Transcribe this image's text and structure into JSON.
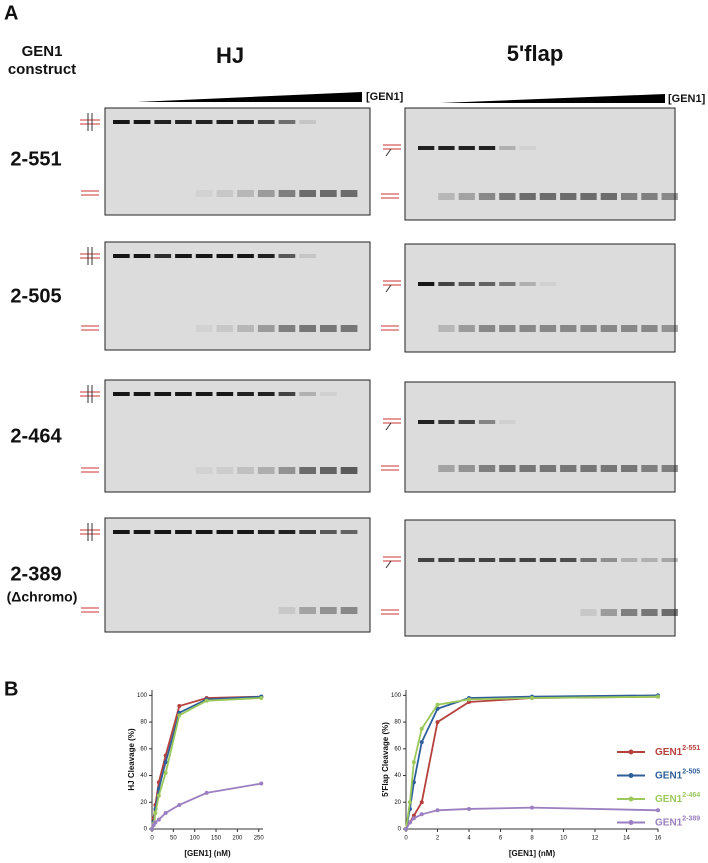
{
  "panel_a": {
    "label": "A",
    "construct_header": [
      "GEN1",
      "construct"
    ],
    "gel_titles": [
      "HJ",
      "5'flap"
    ],
    "titration_label": "[GEN1]",
    "rows": [
      {
        "label": "2-551"
      },
      {
        "label": "2-505"
      },
      {
        "label": "2-464"
      },
      {
        "label": "2-389",
        "sublabel": "(Δchromo)"
      }
    ]
  },
  "panel_b": {
    "label": "B"
  },
  "chart_data": [
    {
      "type": "line",
      "y_label": "HJ Cleavage (%)",
      "x_label": "[GEN1] (nM)",
      "x": [
        0,
        4,
        8,
        16,
        32,
        64,
        128,
        256
      ],
      "xlim": [
        0,
        260
      ],
      "xticks": [
        0,
        50,
        100,
        150,
        200,
        250
      ],
      "ylim": [
        0,
        104
      ],
      "yticks": [
        0,
        20,
        40,
        60,
        80,
        100
      ],
      "series": [
        {
          "color": "#b5413d",
          "values": [
            0,
            8,
            18,
            35,
            55,
            92,
            98,
            99
          ]
        },
        {
          "color": "#2e5f9a",
          "values": [
            0,
            5,
            15,
            30,
            50,
            87,
            97,
            99
          ]
        },
        {
          "color": "#9bc85a",
          "values": [
            0,
            4,
            12,
            25,
            42,
            85,
            96,
            98
          ]
        },
        {
          "color": "#9b7fc0",
          "values": [
            0,
            3,
            5,
            7,
            12,
            18,
            27,
            34
          ]
        }
      ]
    },
    {
      "type": "line",
      "y_label": "5'Flap Cleavage (%)",
      "x_label": "[GEN1] (nM)",
      "x": [
        0,
        0.25,
        0.5,
        1,
        2,
        4,
        8,
        16
      ],
      "xlim": [
        0,
        16
      ],
      "xticks": [
        0,
        2,
        4,
        6,
        8,
        10,
        12,
        14,
        16
      ],
      "ylim": [
        0,
        104
      ],
      "yticks": [
        0,
        20,
        40,
        60,
        80,
        100
      ],
      "series": [
        {
          "name": "GEN1",
          "superscript": "2-551",
          "color": "#b5413d",
          "values": [
            0,
            5,
            10,
            20,
            80,
            95,
            98,
            99
          ]
        },
        {
          "name": "GEN1",
          "superscript": "2-505",
          "color": "#2e5f9a",
          "values": [
            0,
            15,
            35,
            65,
            90,
            98,
            99,
            100
          ]
        },
        {
          "name": "GEN1",
          "superscript": "2-464",
          "color": "#9bc85a",
          "values": [
            0,
            20,
            50,
            75,
            93,
            97,
            98,
            99
          ]
        },
        {
          "name": "GEN1",
          "superscript": "2-389",
          "color": "#9b7fc0",
          "values": [
            0,
            5,
            8,
            11,
            14,
            15,
            16,
            14
          ]
        }
      ]
    }
  ]
}
